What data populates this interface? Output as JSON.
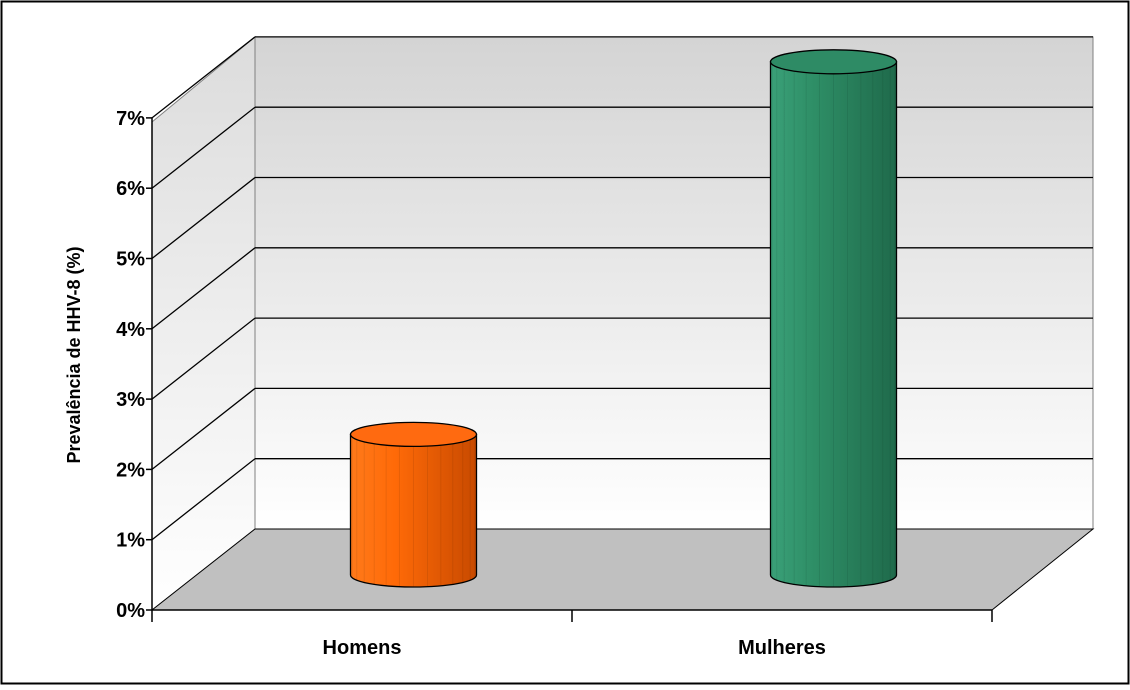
{
  "chart_data": {
    "type": "bar",
    "style": "3d-cylinder",
    "ylabel": "Prevalência de HHV-8 (%)",
    "xlabel": "",
    "categories": [
      "Homens",
      "Mulheres"
    ],
    "values": [
      2.0,
      7.3
    ],
    "unit": "%",
    "ylim": [
      0,
      7
    ],
    "yticks": [
      "0%",
      "1%",
      "2%",
      "3%",
      "4%",
      "5%",
      "6%",
      "7%"
    ],
    "grid": true,
    "legend": "none",
    "colors": [
      "#ff6a10",
      "#2e8b65"
    ]
  }
}
